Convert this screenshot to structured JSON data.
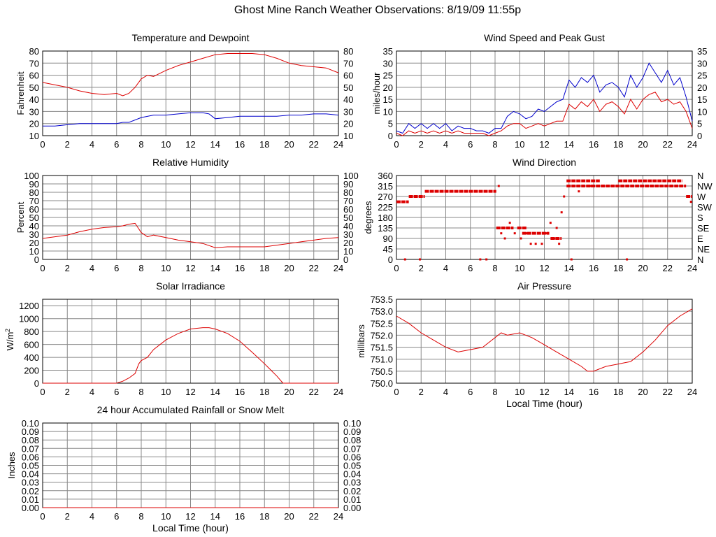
{
  "page": {
    "title": "Ghost Mine Ranch Weather Observations: 8/19/09 11:55p"
  },
  "colors": {
    "red": "#dd0000",
    "blue": "#0000cc",
    "grid": "#888888",
    "frame": "#000000"
  },
  "chart_data": [
    {
      "id": "temperature",
      "type": "line",
      "title": "Temperature and Dewpoint",
      "xlabel": "",
      "ylabel": "Fahrenheit",
      "xlim": [
        0,
        24
      ],
      "ylim": [
        10,
        80
      ],
      "x_ticks": [
        "0",
        "2",
        "4",
        "6",
        "8",
        "10",
        "12",
        "14",
        "16",
        "18",
        "20",
        "22",
        "24"
      ],
      "y_ticks": [
        "10",
        "20",
        "30",
        "40",
        "50",
        "60",
        "70",
        "80"
      ],
      "y_ticks_right": [
        "10",
        "20",
        "30",
        "40",
        "50",
        "60",
        "70",
        "80"
      ],
      "grid": true,
      "series": [
        {
          "name": "Temperature",
          "color": "#dd0000",
          "x": [
            0,
            1,
            2,
            3,
            4,
            5,
            6,
            6.5,
            7,
            7.5,
            8,
            8.5,
            9,
            10,
            11,
            12,
            13,
            14,
            15,
            16,
            17,
            18,
            19,
            20,
            21,
            22,
            23,
            24
          ],
          "values": [
            54,
            52,
            50,
            47,
            45,
            44,
            45,
            43,
            45,
            50,
            57,
            60,
            59,
            64,
            68,
            71,
            74,
            77,
            78,
            78,
            78,
            77,
            74,
            70,
            68,
            67,
            66,
            62
          ]
        },
        {
          "name": "Dewpoint",
          "color": "#0000cc",
          "x": [
            0,
            1,
            2,
            3,
            4,
            5,
            6,
            6.5,
            7,
            8,
            9,
            10,
            11,
            12,
            13,
            13.5,
            14,
            15,
            16,
            17,
            18,
            19,
            20,
            21,
            22,
            23,
            24
          ],
          "values": [
            18,
            18,
            19,
            20,
            20,
            20,
            20,
            21,
            21,
            25,
            27,
            27,
            28,
            29,
            29,
            28,
            24,
            25,
            26,
            26,
            26,
            26,
            27,
            27,
            28,
            28,
            27
          ]
        }
      ]
    },
    {
      "id": "wind-speed",
      "type": "line",
      "title": "Wind Speed and Peak Gust",
      "xlabel": "",
      "ylabel": "miles/hour",
      "xlim": [
        0,
        24
      ],
      "ylim": [
        0,
        35
      ],
      "x_ticks": [
        "0",
        "2",
        "4",
        "6",
        "8",
        "10",
        "12",
        "14",
        "16",
        "18",
        "20",
        "22",
        "24"
      ],
      "y_ticks": [
        "0",
        "5",
        "10",
        "15",
        "20",
        "25",
        "30",
        "35"
      ],
      "y_ticks_right": [
        "0",
        "5",
        "10",
        "15",
        "20",
        "25",
        "30",
        "35"
      ],
      "grid": true,
      "series": [
        {
          "name": "Peak Gust",
          "color": "#0000cc",
          "x": [
            0,
            0.5,
            1,
            1.5,
            2,
            2.5,
            3,
            3.5,
            4,
            4.5,
            5,
            5.5,
            6,
            6.5,
            7,
            7.5,
            8,
            8.5,
            9,
            9.5,
            10,
            10.5,
            11,
            11.5,
            12,
            12.5,
            13,
            13.5,
            14,
            14.5,
            15,
            15.5,
            16,
            16.5,
            17,
            17.5,
            18,
            18.5,
            19,
            19.5,
            20,
            20.5,
            21,
            21.5,
            22,
            22.5,
            23,
            23.5,
            24
          ],
          "values": [
            2,
            1,
            5,
            3,
            5,
            3,
            5,
            3,
            5,
            2,
            4,
            3,
            3,
            2,
            2,
            1,
            3,
            3,
            8,
            10,
            9,
            7,
            8,
            11,
            10,
            12,
            14,
            15,
            23,
            20,
            24,
            22,
            25,
            18,
            21,
            22,
            20,
            16,
            25,
            20,
            24,
            30,
            26,
            22,
            27,
            21,
            24,
            16,
            6
          ]
        },
        {
          "name": "Wind Speed",
          "color": "#dd0000",
          "x": [
            0,
            0.5,
            1,
            1.5,
            2,
            2.5,
            3,
            3.5,
            4,
            4.5,
            5,
            5.5,
            6,
            6.5,
            7,
            7.5,
            8,
            8.5,
            9,
            9.5,
            10,
            10.5,
            11,
            11.5,
            12,
            12.5,
            13,
            13.5,
            14,
            14.5,
            15,
            15.5,
            16,
            16.5,
            17,
            17.5,
            18,
            18.5,
            19,
            19.5,
            20,
            20.5,
            21,
            21.5,
            22,
            22.5,
            23,
            23.5,
            24
          ],
          "values": [
            1,
            0,
            2,
            1,
            2,
            1,
            2,
            1,
            2,
            1,
            2,
            1,
            1,
            1,
            1,
            0,
            1,
            2,
            4,
            5,
            5,
            3,
            4,
            5,
            4,
            5,
            6,
            6,
            13,
            11,
            14,
            12,
            15,
            10,
            13,
            14,
            12,
            9,
            15,
            11,
            15,
            17,
            18,
            14,
            15,
            13,
            14,
            10,
            3
          ]
        }
      ]
    },
    {
      "id": "humidity",
      "type": "line",
      "title": "Relative Humidity",
      "xlabel": "",
      "ylabel": "Percent",
      "xlim": [
        0,
        24
      ],
      "ylim": [
        0,
        100
      ],
      "x_ticks": [
        "0",
        "2",
        "4",
        "6",
        "8",
        "10",
        "12",
        "14",
        "16",
        "18",
        "20",
        "22",
        "24"
      ],
      "y_ticks": [
        "0",
        "10",
        "20",
        "30",
        "40",
        "50",
        "60",
        "70",
        "80",
        "90",
        "100"
      ],
      "y_ticks_right": [
        "0",
        "10",
        "20",
        "30",
        "40",
        "50",
        "60",
        "70",
        "80",
        "90",
        "100"
      ],
      "grid": true,
      "series": [
        {
          "name": "Relative Humidity",
          "color": "#dd0000",
          "x": [
            0,
            1,
            2,
            3,
            4,
            5,
            6,
            6.5,
            7,
            7.5,
            8,
            8.5,
            9,
            10,
            11,
            12,
            13,
            14,
            15,
            16,
            17,
            18,
            19,
            20,
            21,
            22,
            23,
            24
          ],
          "values": [
            25,
            27,
            29,
            33,
            36,
            38,
            39,
            40,
            42,
            43,
            32,
            27,
            29,
            26,
            23,
            21,
            19,
            14,
            15,
            15,
            15,
            15,
            17,
            19,
            21,
            23,
            25,
            26
          ]
        }
      ]
    },
    {
      "id": "wind-direction",
      "type": "scatter",
      "title": "Wind Direction",
      "xlabel": "",
      "ylabel": "degrees",
      "xlim": [
        0,
        24
      ],
      "ylim": [
        0,
        360
      ],
      "x_ticks": [
        "0",
        "2",
        "4",
        "6",
        "8",
        "10",
        "12",
        "14",
        "16",
        "18",
        "20",
        "22",
        "24"
      ],
      "y_ticks": [
        "0",
        "45",
        "90",
        "135",
        "180",
        "225",
        "270",
        "315",
        "360"
      ],
      "y_ticks_right": [
        "N",
        "NE",
        "E",
        "SE",
        "S",
        "SW",
        "W",
        "NW",
        "N"
      ],
      "grid": true,
      "segments": [
        {
          "x0": 0,
          "x1": 1,
          "value": 247
        },
        {
          "x0": 1,
          "x1": 2.3,
          "value": 270
        },
        {
          "x0": 2.3,
          "x1": 8.1,
          "value": 292
        },
        {
          "x0": 8.1,
          "x1": 9.5,
          "value": 135
        },
        {
          "x0": 9.8,
          "x1": 10.6,
          "value": 135
        },
        {
          "x0": 10.2,
          "x1": 12.4,
          "value": 112
        },
        {
          "x0": 12.5,
          "x1": 13.4,
          "value": 90
        },
        {
          "x0": 13.8,
          "x1": 23.5,
          "value": 315
        },
        {
          "x0": 13.8,
          "x1": 16.5,
          "value": 337
        },
        {
          "x0": 18,
          "x1": 23.2,
          "value": 337
        },
        {
          "x0": 23.5,
          "x1": 24,
          "value": 270
        }
      ],
      "series": [
        {
          "name": "Wind Direction",
          "color": "#dd0000",
          "x": [
            0.7,
            1.9,
            6.8,
            7.3,
            8.3,
            8.5,
            8.8,
            9.2,
            9.6,
            10.1,
            10.6,
            10.9,
            11.3,
            11.8,
            12.2,
            12.5,
            12.8,
            13.0,
            13.2,
            13.4,
            13.6,
            14.2,
            14.8,
            15.8,
            18.7,
            23.9
          ],
          "values": [
            0,
            0,
            0,
            0,
            315,
            112,
            90,
            157,
            112,
            90,
            112,
            67,
            67,
            67,
            112,
            157,
            90,
            135,
            67,
            202,
            270,
            0,
            292,
            315,
            0,
            247
          ]
        }
      ]
    },
    {
      "id": "solar",
      "type": "line",
      "title": "Solar Irradiance",
      "xlabel": "",
      "ylabel": "W/m²",
      "ylabel_main": "W/m",
      "ylabel_sup": "2",
      "xlim": [
        0,
        24
      ],
      "ylim": [
        0,
        1300
      ],
      "x_ticks": [
        "0",
        "2",
        "4",
        "6",
        "8",
        "10",
        "12",
        "14",
        "16",
        "18",
        "20",
        "22",
        "24"
      ],
      "y_ticks": [
        "0",
        "200",
        "400",
        "600",
        "800",
        "1000",
        "1200"
      ],
      "y_tick_values": [
        0,
        200,
        400,
        600,
        800,
        1000,
        1200
      ],
      "grid": true,
      "series": [
        {
          "name": "Solar Irradiance",
          "color": "#dd0000",
          "x": [
            0,
            6,
            6.5,
            7,
            7.5,
            7.8,
            8,
            8.5,
            9,
            10,
            11,
            12,
            13,
            13.5,
            14,
            15,
            16,
            17,
            18,
            19,
            19.5,
            20,
            24
          ],
          "values": [
            0,
            0,
            30,
            80,
            150,
            300,
            350,
            400,
            520,
            670,
            770,
            840,
            860,
            860,
            840,
            770,
            650,
            480,
            300,
            110,
            0,
            0,
            0
          ]
        }
      ]
    },
    {
      "id": "pressure",
      "type": "line",
      "title": "Air Pressure",
      "xlabel": "Local Time (hour)",
      "ylabel": "millibars",
      "xlim": [
        0,
        24
      ],
      "ylim": [
        750.0,
        753.5
      ],
      "x_ticks": [
        "0",
        "2",
        "4",
        "6",
        "8",
        "10",
        "12",
        "14",
        "16",
        "18",
        "20",
        "22",
        "24"
      ],
      "y_ticks": [
        "750.0",
        "750.5",
        "751.0",
        "751.5",
        "752.0",
        "752.5",
        "753.0",
        "753.5"
      ],
      "y_tick_values": [
        750.0,
        750.5,
        751.0,
        751.5,
        752.0,
        752.5,
        753.0,
        753.5
      ],
      "grid": true,
      "series": [
        {
          "name": "Air Pressure",
          "color": "#dd0000",
          "x": [
            0,
            1,
            2,
            3,
            4,
            5,
            6,
            7,
            8,
            8.5,
            9,
            10,
            11,
            12,
            13,
            14,
            15,
            15.5,
            16,
            17,
            18,
            19,
            20,
            21,
            22,
            23,
            24
          ],
          "values": [
            752.8,
            752.5,
            752.1,
            751.8,
            751.5,
            751.3,
            751.4,
            751.5,
            751.9,
            752.1,
            752.0,
            752.1,
            751.9,
            751.6,
            751.3,
            751.0,
            750.7,
            750.5,
            750.5,
            750.7,
            750.8,
            750.9,
            751.3,
            751.8,
            752.4,
            752.8,
            753.1
          ]
        }
      ]
    },
    {
      "id": "rainfall",
      "type": "line",
      "title": "24 hour Accumulated Rainfall or Snow Melt",
      "xlabel": "Local Time (hour)",
      "ylabel": "Inches",
      "xlim": [
        0,
        24
      ],
      "ylim": [
        0,
        0.1
      ],
      "x_ticks": [
        "0",
        "2",
        "4",
        "6",
        "8",
        "10",
        "12",
        "14",
        "16",
        "18",
        "20",
        "22",
        "24"
      ],
      "y_ticks": [
        "0.00",
        "0.01",
        "0.02",
        "0.03",
        "0.04",
        "0.05",
        "0.06",
        "0.07",
        "0.08",
        "0.09",
        "0.10"
      ],
      "y_ticks_right": [
        "0.00",
        "0.01",
        "0.02",
        "0.03",
        "0.04",
        "0.05",
        "0.06",
        "0.07",
        "0.08",
        "0.09",
        "0.10"
      ],
      "y_tick_values": [
        0,
        0.01,
        0.02,
        0.03,
        0.04,
        0.05,
        0.06,
        0.07,
        0.08,
        0.09,
        0.1
      ],
      "grid": true,
      "series": [
        {
          "name": "Rainfall",
          "color": "#dd0000",
          "x": [
            0,
            24
          ],
          "values": [
            0,
            0
          ]
        }
      ]
    }
  ]
}
